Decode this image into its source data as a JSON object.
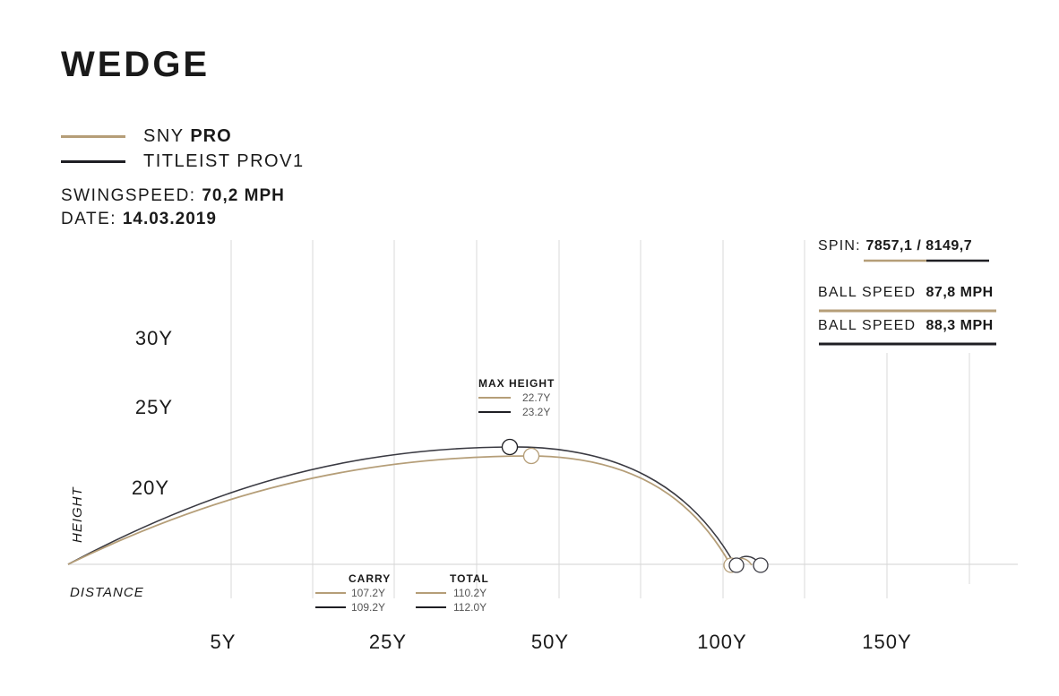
{
  "chart_data": {
    "type": "line",
    "title": "WEDGE",
    "series": [
      {
        "name": "SNY PRO",
        "color": "#b59e78",
        "max_height": "22.7Y",
        "carry": "107.2Y",
        "total": "110.2Y",
        "ball_speed": "87,8 MPH",
        "spin": "7857,1"
      },
      {
        "name": "TITLEIST PROV1",
        "color": "#1f1f24",
        "max_height": "23.2Y",
        "carry": "109.2Y",
        "total": "112.0Y",
        "ball_speed": "88,3 MPH",
        "spin": "8149,7"
      }
    ],
    "ylabel": "HEIGHT",
    "xlabel": "DISTANCE",
    "y_tick_labels": [
      "30Y",
      "25Y",
      "20Y"
    ],
    "x_tick_labels": [
      "5Y",
      "25Y",
      "50Y",
      "100Y",
      "150Y"
    ],
    "grid": true
  },
  "legend": {
    "series_a_prefix": "SNY ",
    "series_a_bold": "PRO",
    "series_b": "TITLEIST PROV1"
  },
  "meta": {
    "swingspeed_label": "SWINGSPEED: ",
    "swingspeed_value": "70,2 MPH",
    "date_label": "DATE: ",
    "date_value": "14.03.2019"
  },
  "stats": {
    "spin_label": "SPIN: ",
    "spin_value": "7857,1 / 8149,7",
    "ball_speed_label": "BALL SPEED",
    "max_height_label": "MAX HEIGHT",
    "carry_label": "CARRY",
    "total_label": "TOTAL"
  }
}
